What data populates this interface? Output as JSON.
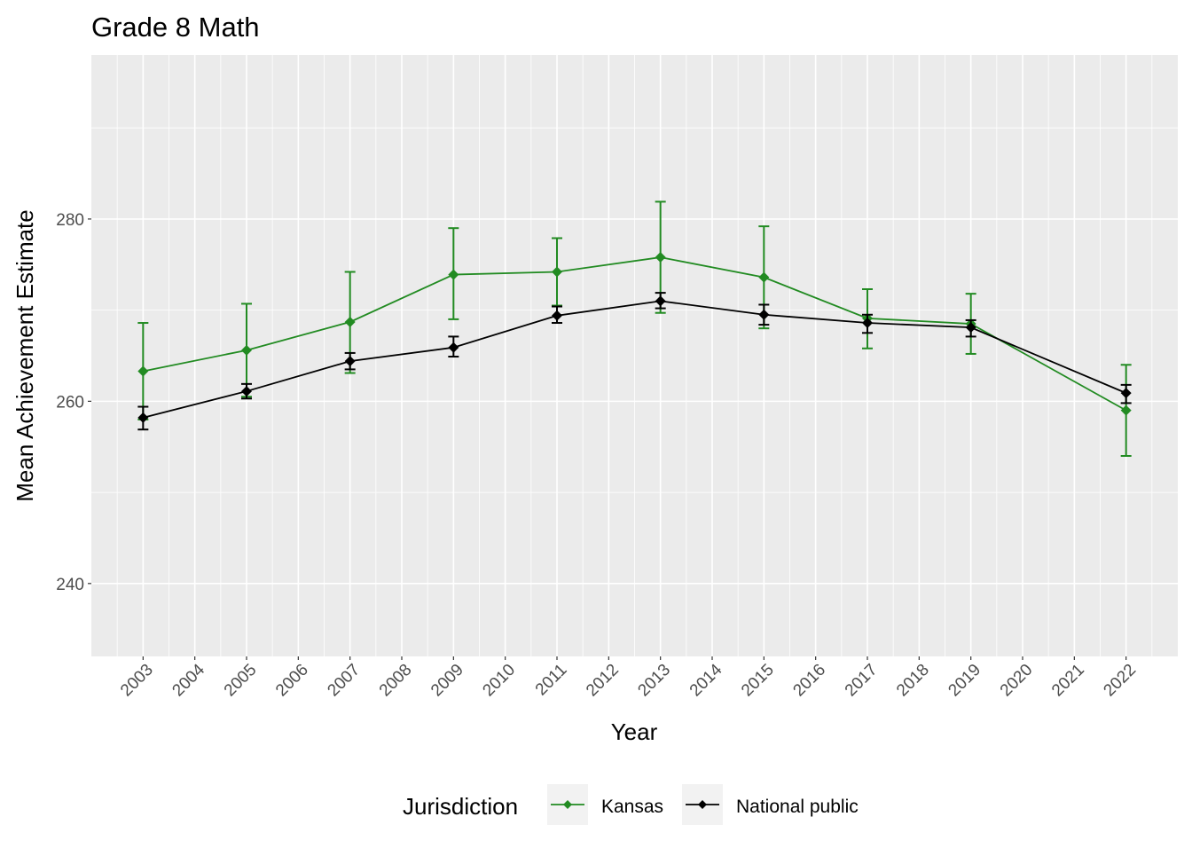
{
  "chart_data": {
    "type": "line",
    "title": "Grade 8 Math",
    "xlabel": "Year",
    "ylabel": "Mean Achievement Estimate",
    "xlim": [
      2002,
      2023
    ],
    "ylim": [
      232,
      298
    ],
    "x_ticks": [
      2003,
      2004,
      2005,
      2006,
      2007,
      2008,
      2009,
      2010,
      2011,
      2012,
      2013,
      2014,
      2015,
      2016,
      2017,
      2018,
      2019,
      2020,
      2021,
      2022
    ],
    "y_ticks": [
      240,
      260,
      280
    ],
    "grid": true,
    "legend": {
      "title": "Jurisdiction",
      "placement": "bottom"
    },
    "series": [
      {
        "name": "Kansas",
        "color": "#228B22",
        "x": [
          2003,
          2005,
          2007,
          2009,
          2011,
          2013,
          2015,
          2017,
          2019,
          2022
        ],
        "y": [
          263.3,
          265.6,
          268.7,
          273.9,
          274.2,
          275.8,
          273.6,
          269.1,
          268.5,
          259.0
        ],
        "error_high": [
          268.6,
          270.7,
          274.2,
          279.0,
          277.9,
          281.9,
          279.2,
          272.3,
          271.8,
          264.0
        ],
        "error_low": [
          258.0,
          260.5,
          263.1,
          269.0,
          270.5,
          269.7,
          268.0,
          265.8,
          265.2,
          254.0
        ]
      },
      {
        "name": "National public",
        "color": "#000000",
        "x": [
          2003,
          2005,
          2007,
          2009,
          2011,
          2013,
          2015,
          2017,
          2019,
          2022
        ],
        "y": [
          258.2,
          261.1,
          264.4,
          265.9,
          269.4,
          271.0,
          269.5,
          268.6,
          268.1,
          260.9
        ],
        "error_high": [
          259.4,
          261.9,
          265.3,
          267.1,
          270.4,
          271.9,
          270.6,
          269.5,
          268.9,
          261.8
        ],
        "error_low": [
          256.9,
          260.3,
          263.5,
          264.9,
          268.6,
          270.2,
          268.4,
          267.5,
          267.1,
          259.8
        ]
      }
    ]
  }
}
